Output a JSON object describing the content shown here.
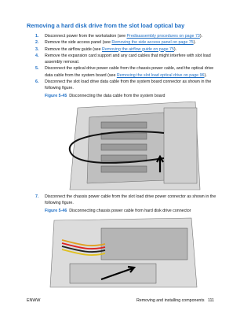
{
  "title": "Removing a hard disk drive from the slot load optical bay",
  "steps": [
    {
      "number": "1.",
      "segments": [
        {
          "text": "Disconnect power from the workstation (see "
        },
        {
          "link": "Predisassembly procedures on page 73"
        },
        {
          "text": ")."
        }
      ]
    },
    {
      "number": "2.",
      "segments": [
        {
          "text": "Remove the side access panel (see "
        },
        {
          "link": "Removing the side access panel on page 75"
        },
        {
          "text": ")."
        }
      ]
    },
    {
      "number": "3.",
      "segments": [
        {
          "text": "Remove the airflow guide (see "
        },
        {
          "link": "Removing the airflow guide on page 75"
        },
        {
          "text": ")."
        }
      ]
    },
    {
      "number": "4.",
      "segments": [
        {
          "text": "Remove the expansion card support and any card cables that might interfere with slot load assembly removal."
        }
      ]
    },
    {
      "number": "5.",
      "segments": [
        {
          "text": "Disconnect the optical drive power cable from the chassis power cable, and the optical drive data cable from the system board (see "
        },
        {
          "link": "Removing the slot load optical drive on page 96"
        },
        {
          "text": ")."
        }
      ]
    },
    {
      "number": "6.",
      "segments": [
        {
          "text": "Disconnect the slot load drive data cable from the system board connector as shown in the following figure."
        }
      ],
      "figure": {
        "label": "Figure 5-45",
        "caption": "Disconnecting the data cable from the system board"
      }
    },
    {
      "number": "7.",
      "segments": [
        {
          "text": "Disconnect the chassis power cable from the slot load drive power connector as shown in the following figure."
        }
      ],
      "figure": {
        "label": "Figure 5-46",
        "caption": "Disconnecting chassis power cable from hard disk drive connector"
      }
    }
  ],
  "footer": {
    "left": "ENWW",
    "right": "Removing and installing components",
    "page": "111"
  }
}
